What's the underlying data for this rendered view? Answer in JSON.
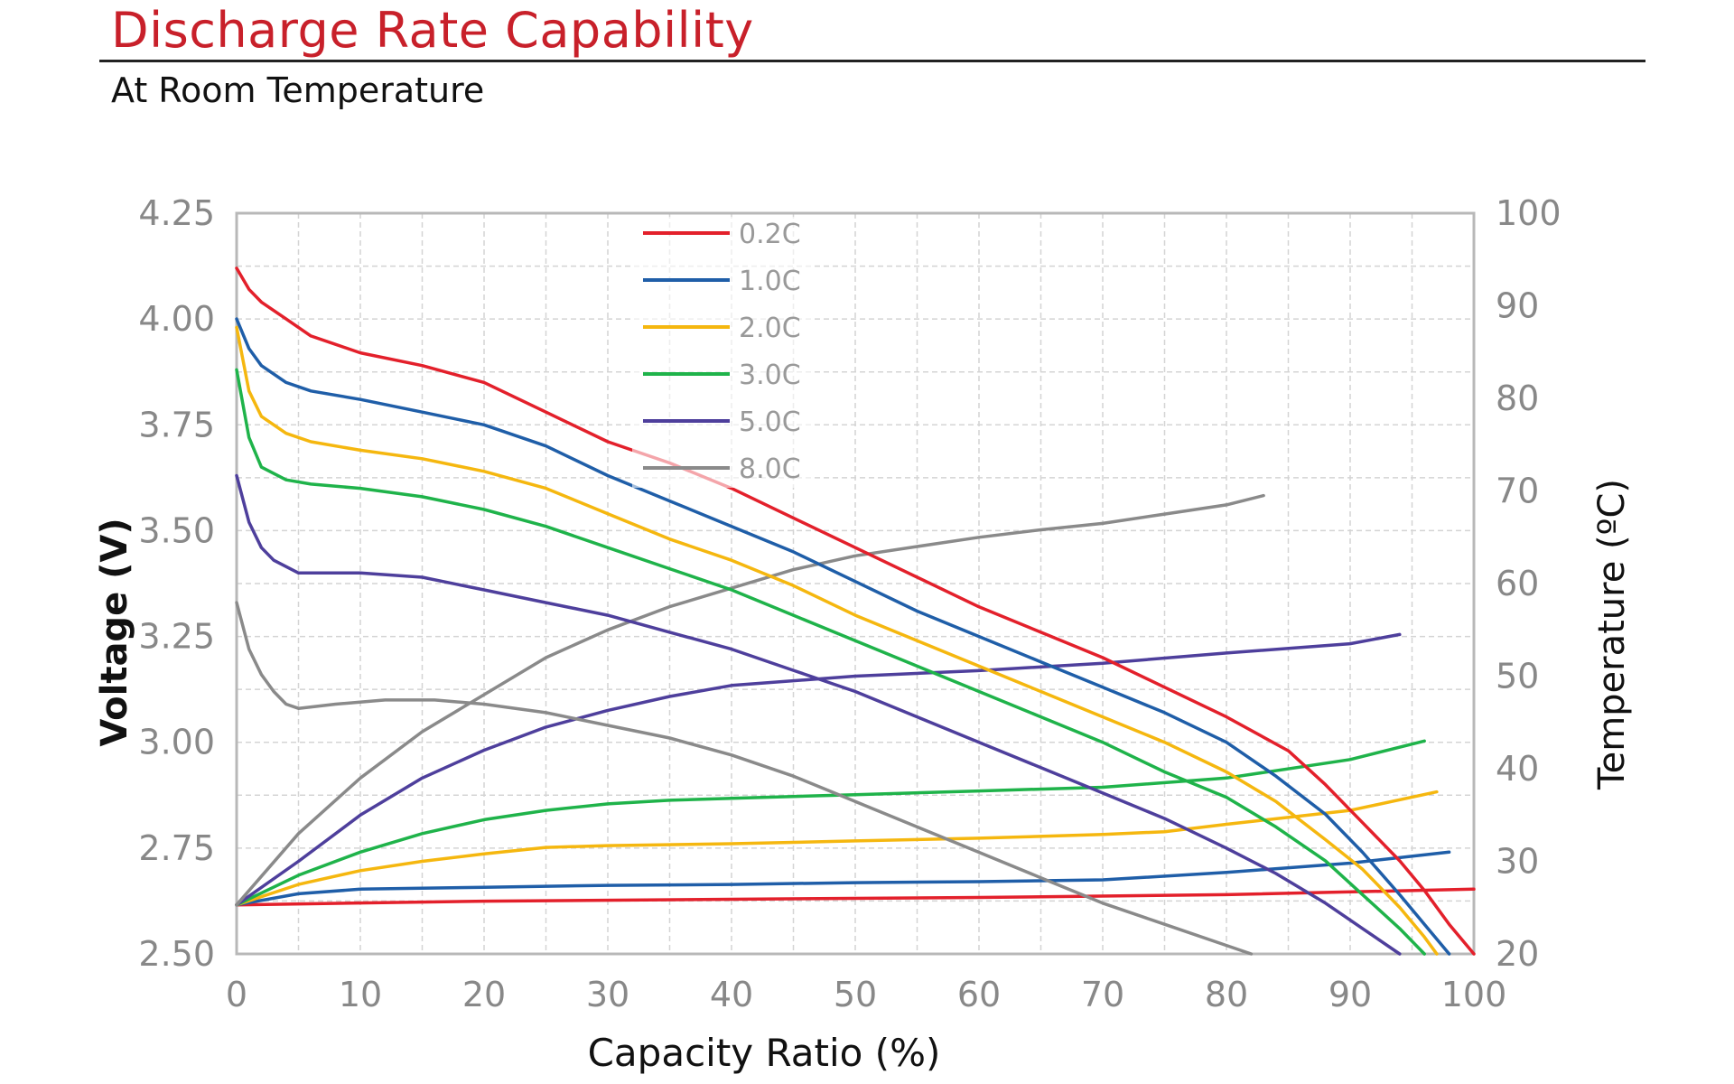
{
  "header": {
    "title": "Discharge Rate Capability",
    "subtitle": "At Room Temperature"
  },
  "chart_data": {
    "type": "line",
    "xlabel": "Capacity Ratio (%)",
    "ylabel": "Voltage (V)",
    "y2label": "Temperature (ºC)",
    "xlim": [
      0,
      100
    ],
    "ylim": [
      2.5,
      4.25
    ],
    "y2lim": [
      20,
      100
    ],
    "xticks": [
      "0",
      "10",
      "20",
      "30",
      "40",
      "50",
      "60",
      "70",
      "80",
      "90",
      "100"
    ],
    "yticks": [
      "2.50",
      "2.75",
      "3.00",
      "3.25",
      "3.50",
      "3.75",
      "4.00",
      "4.25"
    ],
    "y2ticks": [
      "20",
      "30",
      "40",
      "50",
      "60",
      "70",
      "80",
      "90",
      "100"
    ],
    "grid": true,
    "legend_position": "top-center",
    "legend": [
      "0.2C",
      "1.0C",
      "2.0C",
      "3.0C",
      "5.0C",
      "8.0C"
    ],
    "colors": [
      "#e3202b",
      "#1f5ea8",
      "#f5b70f",
      "#1fb34a",
      "#4e3f9c",
      "#8a8a8a"
    ],
    "series": [
      {
        "name": "0.2C",
        "color": "#e3202b",
        "voltage": [
          [
            0,
            4.12
          ],
          [
            1,
            4.07
          ],
          [
            2,
            4.04
          ],
          [
            4,
            4.0
          ],
          [
            6,
            3.96
          ],
          [
            10,
            3.92
          ],
          [
            15,
            3.89
          ],
          [
            20,
            3.85
          ],
          [
            25,
            3.78
          ],
          [
            30,
            3.71
          ],
          [
            35,
            3.66
          ],
          [
            40,
            3.6
          ],
          [
            45,
            3.53
          ],
          [
            50,
            3.46
          ],
          [
            55,
            3.39
          ],
          [
            60,
            3.32
          ],
          [
            65,
            3.26
          ],
          [
            70,
            3.2
          ],
          [
            75,
            3.13
          ],
          [
            80,
            3.06
          ],
          [
            85,
            2.98
          ],
          [
            88,
            2.9
          ],
          [
            91,
            2.81
          ],
          [
            94,
            2.72
          ],
          [
            96,
            2.65
          ],
          [
            98,
            2.57
          ],
          [
            100,
            2.5
          ]
        ],
        "temperature": [
          [
            0,
            25.3
          ],
          [
            20,
            25.7
          ],
          [
            40,
            25.9
          ],
          [
            60,
            26.1
          ],
          [
            80,
            26.4
          ],
          [
            100,
            27.0
          ]
        ]
      },
      {
        "name": "1.0C",
        "color": "#1f5ea8",
        "voltage": [
          [
            0,
            4.0
          ],
          [
            1,
            3.93
          ],
          [
            2,
            3.89
          ],
          [
            4,
            3.85
          ],
          [
            6,
            3.83
          ],
          [
            10,
            3.81
          ],
          [
            15,
            3.78
          ],
          [
            20,
            3.75
          ],
          [
            25,
            3.7
          ],
          [
            30,
            3.63
          ],
          [
            35,
            3.57
          ],
          [
            40,
            3.51
          ],
          [
            45,
            3.45
          ],
          [
            50,
            3.38
          ],
          [
            55,
            3.31
          ],
          [
            60,
            3.25
          ],
          [
            65,
            3.19
          ],
          [
            70,
            3.13
          ],
          [
            75,
            3.07
          ],
          [
            80,
            3.0
          ],
          [
            84,
            2.92
          ],
          [
            88,
            2.83
          ],
          [
            91,
            2.74
          ],
          [
            94,
            2.64
          ],
          [
            96,
            2.57
          ],
          [
            98,
            2.5
          ]
        ],
        "temperature": [
          [
            0,
            25.3
          ],
          [
            5,
            26.5
          ],
          [
            10,
            27.0
          ],
          [
            20,
            27.2
          ],
          [
            30,
            27.4
          ],
          [
            40,
            27.5
          ],
          [
            50,
            27.7
          ],
          [
            60,
            27.8
          ],
          [
            70,
            28.0
          ],
          [
            80,
            28.8
          ],
          [
            90,
            29.8
          ],
          [
            98,
            31.0
          ]
        ]
      },
      {
        "name": "2.0C",
        "color": "#f5b70f",
        "voltage": [
          [
            0,
            3.98
          ],
          [
            1,
            3.83
          ],
          [
            2,
            3.77
          ],
          [
            4,
            3.73
          ],
          [
            6,
            3.71
          ],
          [
            10,
            3.69
          ],
          [
            15,
            3.67
          ],
          [
            20,
            3.64
          ],
          [
            25,
            3.6
          ],
          [
            30,
            3.54
          ],
          [
            35,
            3.48
          ],
          [
            40,
            3.43
          ],
          [
            45,
            3.37
          ],
          [
            50,
            3.3
          ],
          [
            55,
            3.24
          ],
          [
            60,
            3.18
          ],
          [
            65,
            3.12
          ],
          [
            70,
            3.06
          ],
          [
            75,
            3.0
          ],
          [
            80,
            2.93
          ],
          [
            84,
            2.86
          ],
          [
            88,
            2.77
          ],
          [
            91,
            2.7
          ],
          [
            94,
            2.61
          ],
          [
            96,
            2.54
          ],
          [
            97,
            2.5
          ]
        ],
        "temperature": [
          [
            0,
            25.3
          ],
          [
            5,
            27.5
          ],
          [
            10,
            29.0
          ],
          [
            15,
            30.0
          ],
          [
            20,
            30.8
          ],
          [
            25,
            31.5
          ],
          [
            30,
            31.7
          ],
          [
            40,
            31.9
          ],
          [
            50,
            32.2
          ],
          [
            60,
            32.5
          ],
          [
            70,
            32.9
          ],
          [
            75,
            33.2
          ],
          [
            80,
            34.0
          ],
          [
            90,
            35.5
          ],
          [
            97,
            37.5
          ]
        ]
      },
      {
        "name": "3.0C",
        "color": "#1fb34a",
        "voltage": [
          [
            0,
            3.88
          ],
          [
            1,
            3.72
          ],
          [
            2,
            3.65
          ],
          [
            4,
            3.62
          ],
          [
            6,
            3.61
          ],
          [
            10,
            3.6
          ],
          [
            15,
            3.58
          ],
          [
            20,
            3.55
          ],
          [
            25,
            3.51
          ],
          [
            30,
            3.46
          ],
          [
            35,
            3.41
          ],
          [
            40,
            3.36
          ],
          [
            45,
            3.3
          ],
          [
            50,
            3.24
          ],
          [
            55,
            3.18
          ],
          [
            60,
            3.12
          ],
          [
            65,
            3.06
          ],
          [
            70,
            3.0
          ],
          [
            75,
            2.93
          ],
          [
            80,
            2.87
          ],
          [
            84,
            2.8
          ],
          [
            88,
            2.72
          ],
          [
            91,
            2.64
          ],
          [
            94,
            2.56
          ],
          [
            96,
            2.5
          ]
        ],
        "temperature": [
          [
            0,
            25.3
          ],
          [
            5,
            28.5
          ],
          [
            10,
            31.0
          ],
          [
            15,
            33.0
          ],
          [
            20,
            34.5
          ],
          [
            25,
            35.5
          ],
          [
            30,
            36.2
          ],
          [
            35,
            36.6
          ],
          [
            40,
            36.8
          ],
          [
            50,
            37.2
          ],
          [
            60,
            37.6
          ],
          [
            70,
            38.0
          ],
          [
            80,
            39.0
          ],
          [
            90,
            41.0
          ],
          [
            96,
            43.0
          ]
        ]
      },
      {
        "name": "5.0C",
        "color": "#4e3f9c",
        "voltage": [
          [
            0,
            3.63
          ],
          [
            1,
            3.52
          ],
          [
            2,
            3.46
          ],
          [
            3,
            3.43
          ],
          [
            5,
            3.4
          ],
          [
            10,
            3.4
          ],
          [
            15,
            3.39
          ],
          [
            20,
            3.36
          ],
          [
            25,
            3.33
          ],
          [
            30,
            3.3
          ],
          [
            35,
            3.26
          ],
          [
            40,
            3.22
          ],
          [
            45,
            3.17
          ],
          [
            50,
            3.12
          ],
          [
            55,
            3.06
          ],
          [
            60,
            3.0
          ],
          [
            65,
            2.94
          ],
          [
            70,
            2.88
          ],
          [
            75,
            2.82
          ],
          [
            80,
            2.75
          ],
          [
            84,
            2.69
          ],
          [
            88,
            2.62
          ],
          [
            91,
            2.56
          ],
          [
            94,
            2.5
          ]
        ],
        "temperature": [
          [
            0,
            25.3
          ],
          [
            5,
            30.0
          ],
          [
            10,
            35.0
          ],
          [
            15,
            39.0
          ],
          [
            20,
            42.0
          ],
          [
            25,
            44.5
          ],
          [
            30,
            46.3
          ],
          [
            35,
            47.8
          ],
          [
            40,
            49.0
          ],
          [
            50,
            50.0
          ],
          [
            60,
            50.6
          ],
          [
            70,
            51.4
          ],
          [
            80,
            52.5
          ],
          [
            90,
            53.5
          ],
          [
            94,
            54.5
          ]
        ]
      },
      {
        "name": "8.0C",
        "color": "#8a8a8a",
        "voltage": [
          [
            0,
            3.33
          ],
          [
            1,
            3.22
          ],
          [
            2,
            3.16
          ],
          [
            3,
            3.12
          ],
          [
            4,
            3.09
          ],
          [
            5,
            3.08
          ],
          [
            8,
            3.09
          ],
          [
            12,
            3.1
          ],
          [
            16,
            3.1
          ],
          [
            20,
            3.09
          ],
          [
            25,
            3.07
          ],
          [
            30,
            3.04
          ],
          [
            35,
            3.01
          ],
          [
            40,
            2.97
          ],
          [
            45,
            2.92
          ],
          [
            50,
            2.86
          ],
          [
            55,
            2.8
          ],
          [
            60,
            2.74
          ],
          [
            65,
            2.68
          ],
          [
            70,
            2.62
          ],
          [
            75,
            2.57
          ],
          [
            80,
            2.52
          ],
          [
            82,
            2.5
          ]
        ],
        "temperature": [
          [
            0,
            25.3
          ],
          [
            5,
            33.0
          ],
          [
            10,
            39.0
          ],
          [
            15,
            44.0
          ],
          [
            20,
            48.0
          ],
          [
            25,
            52.0
          ],
          [
            30,
            55.0
          ],
          [
            35,
            57.5
          ],
          [
            40,
            59.5
          ],
          [
            45,
            61.5
          ],
          [
            50,
            63.0
          ],
          [
            55,
            64.0
          ],
          [
            60,
            65.0
          ],
          [
            65,
            65.8
          ],
          [
            70,
            66.5
          ],
          [
            75,
            67.5
          ],
          [
            80,
            68.5
          ],
          [
            83,
            69.5
          ]
        ]
      }
    ]
  }
}
